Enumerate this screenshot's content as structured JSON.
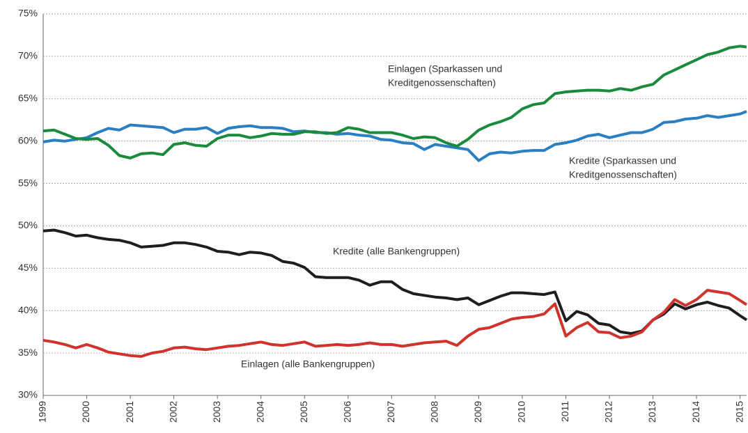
{
  "chart_data": {
    "type": "line",
    "annotations": [
      "Einlagen (Sparkassen und",
      "Kreditgenossenschaften)",
      "Kredite (Sparkassen und",
      "Kreditgenossenschaften)",
      "Kredite (alle Bankengruppen)",
      "Einlagen (alle Bankengruppen)"
    ],
    "x": [
      1999,
      1999.25,
      1999.5,
      1999.75,
      2000,
      2000.25,
      2000.5,
      2000.75,
      2001,
      2001.25,
      2001.5,
      2001.75,
      2002,
      2002.25,
      2002.5,
      2002.75,
      2003,
      2003.25,
      2003.5,
      2003.75,
      2004,
      2004.25,
      2004.5,
      2004.75,
      2005,
      2005.25,
      2005.5,
      2005.75,
      2006,
      2006.25,
      2006.5,
      2006.75,
      2007,
      2007.25,
      2007.5,
      2007.75,
      2008,
      2008.25,
      2008.5,
      2008.75,
      2009,
      2009.25,
      2009.5,
      2009.75,
      2010,
      2010.25,
      2010.5,
      2010.75,
      2011,
      2011.25,
      2011.5,
      2011.75,
      2012,
      2012.25,
      2012.5,
      2012.75,
      2013,
      2013.25,
      2013.5,
      2013.75,
      2014,
      2014.25,
      2014.5,
      2014.75,
      2015,
      2015.15
    ],
    "series": [
      {
        "color": "#1a8a3c",
        "values": [
          61.2,
          61.3,
          60.8,
          60.3,
          60.2,
          60.3,
          59.5,
          58.3,
          58.0,
          58.5,
          58.6,
          58.4,
          59.6,
          59.8,
          59.5,
          59.4,
          60.3,
          60.7,
          60.7,
          60.4,
          60.6,
          60.9,
          60.8,
          60.8,
          61.1,
          61.1,
          60.9,
          61.0,
          61.6,
          61.4,
          61.0,
          61.0,
          61.0,
          60.7,
          60.3,
          60.5,
          60.4,
          59.8,
          59.4,
          60.2,
          61.3,
          61.9,
          62.3,
          62.8,
          63.8,
          64.3,
          64.5,
          65.6,
          65.8,
          65.9,
          66.0,
          66.0,
          65.9,
          66.2,
          66.0,
          66.4,
          66.7,
          67.8,
          68.4,
          69.0,
          69.6,
          70.2,
          70.5,
          71.0,
          71.2,
          71.1
        ]
      },
      {
        "color": "#2a7ec2",
        "values": [
          59.9,
          60.1,
          60.0,
          60.2,
          60.4,
          61.0,
          61.5,
          61.3,
          61.9,
          61.8,
          61.7,
          61.6,
          61.0,
          61.4,
          61.4,
          61.6,
          60.9,
          61.5,
          61.7,
          61.8,
          61.6,
          61.6,
          61.5,
          61.1,
          61.2,
          61.0,
          61.0,
          60.8,
          60.9,
          60.7,
          60.6,
          60.2,
          60.1,
          59.8,
          59.7,
          59.0,
          59.6,
          59.4,
          59.2,
          59.0,
          57.7,
          58.5,
          58.7,
          58.6,
          58.8,
          58.9,
          58.9,
          59.6,
          59.8,
          60.1,
          60.6,
          60.8,
          60.4,
          60.7,
          61.0,
          61.0,
          61.4,
          62.2,
          62.3,
          62.6,
          62.7,
          63.0,
          62.8,
          63.0,
          63.2,
          63.5
        ]
      },
      {
        "color": "#1e1e1e",
        "values": [
          49.4,
          49.5,
          49.2,
          48.8,
          48.9,
          48.6,
          48.4,
          48.3,
          48.0,
          47.5,
          47.6,
          47.7,
          48.0,
          48.0,
          47.8,
          47.5,
          47.0,
          46.9,
          46.6,
          46.9,
          46.8,
          46.5,
          45.8,
          45.6,
          45.1,
          44.0,
          43.9,
          43.9,
          43.9,
          43.6,
          43.0,
          43.4,
          43.4,
          42.5,
          42.0,
          41.8,
          41.6,
          41.5,
          41.3,
          41.5,
          40.7,
          41.2,
          41.7,
          42.1,
          42.1,
          42.0,
          41.9,
          42.2,
          38.8,
          39.9,
          39.5,
          38.5,
          38.3,
          37.5,
          37.3,
          37.6,
          38.9,
          39.6,
          40.8,
          40.2,
          40.7,
          41.0,
          40.6,
          40.3,
          39.4,
          38.9
        ]
      },
      {
        "color": "#d0332b",
        "values": [
          36.5,
          36.3,
          36.0,
          35.6,
          36.0,
          35.6,
          35.1,
          34.9,
          34.7,
          34.6,
          35.0,
          35.2,
          35.6,
          35.7,
          35.5,
          35.4,
          35.6,
          35.8,
          35.9,
          36.1,
          36.3,
          36.0,
          35.9,
          36.1,
          36.3,
          35.8,
          35.9,
          36.0,
          35.9,
          36.0,
          36.2,
          36.0,
          36.0,
          35.8,
          36.0,
          36.2,
          36.3,
          36.4,
          35.9,
          37.0,
          37.8,
          38.0,
          38.5,
          39.0,
          39.2,
          39.3,
          39.6,
          40.8,
          37.0,
          38.0,
          38.6,
          37.5,
          37.4,
          36.8,
          37.0,
          37.5,
          38.9,
          39.8,
          41.3,
          40.6,
          41.3,
          42.4,
          42.2,
          42.0,
          41.2,
          40.7
        ]
      }
    ],
    "xlim": [
      1999,
      2015.15
    ],
    "xticks": [
      1999,
      2000,
      2001,
      2002,
      2003,
      2004,
      2005,
      2006,
      2007,
      2008,
      2009,
      2010,
      2011,
      2012,
      2013,
      2014,
      2015
    ],
    "ylim": [
      30,
      75
    ],
    "yticks": [
      {
        "value": 30,
        "label": "30%"
      },
      {
        "value": 35,
        "label": "35%"
      },
      {
        "value": 40,
        "label": "40%"
      },
      {
        "value": 45,
        "label": "45%"
      },
      {
        "value": 50,
        "label": "50%"
      },
      {
        "value": 55,
        "label": "55%"
      },
      {
        "value": 60,
        "label": "60%"
      },
      {
        "value": 65,
        "label": "65%"
      },
      {
        "value": 70,
        "label": "70%"
      },
      {
        "value": 75,
        "label": "75%"
      }
    ],
    "grid": true
  }
}
